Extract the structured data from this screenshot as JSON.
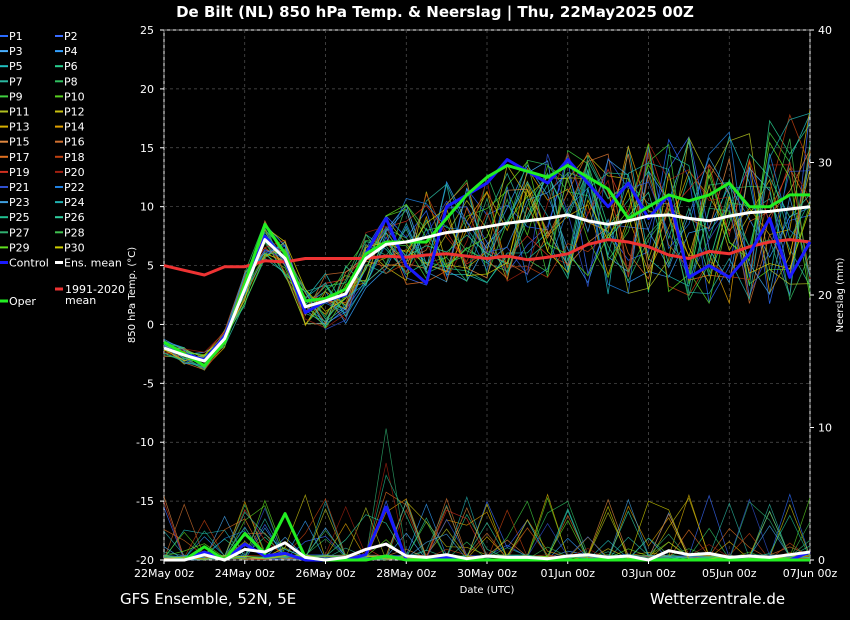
{
  "chart_data": {
    "type": "line",
    "title": "De Bilt  (NL)  850 hPa Temp. & Neerslag | Thu, 22May2025 00Z",
    "ylabel_left": "850 hPa Temp. (°C)",
    "ylabel_right": "Neerslag (mm)",
    "xlabel": "Date (UTC)",
    "footer_left": "GFS Ensemble, 52N, 5E",
    "footer_right": "Wetterzentrale.de",
    "x_ticks": [
      "22May 00z",
      "24May 00z",
      "26May 00z",
      "28May 00z",
      "30May 00z",
      "01Jun 00z",
      "03Jun 00z",
      "05Jun 00z",
      "07Jun 00z"
    ],
    "x_range_days": [
      0,
      16
    ],
    "y_left_ticks": [
      25,
      20,
      15,
      10,
      5,
      0,
      -5,
      -10,
      -15,
      -20
    ],
    "ylim_left": [
      -20,
      25
    ],
    "y_right_ticks": [
      40,
      30,
      20,
      10,
      0
    ],
    "ylim_right": [
      0,
      40
    ],
    "grid": true,
    "legend": [
      {
        "name": "P1",
        "color": "#2a6bff"
      },
      {
        "name": "P2",
        "color": "#3a6cff"
      },
      {
        "name": "P3",
        "color": "#4ab0ff"
      },
      {
        "name": "P4",
        "color": "#33a0ff"
      },
      {
        "name": "P5",
        "color": "#20c0c0"
      },
      {
        "name": "P6",
        "color": "#28d090"
      },
      {
        "name": "P7",
        "color": "#2ab8a0"
      },
      {
        "name": "P8",
        "color": "#30c060"
      },
      {
        "name": "P9",
        "color": "#40d040"
      },
      {
        "name": "P10",
        "color": "#58d020"
      },
      {
        "name": "P11",
        "color": "#b0c020"
      },
      {
        "name": "P12",
        "color": "#c8c010"
      },
      {
        "name": "P13",
        "color": "#d8b000"
      },
      {
        "name": "P14",
        "color": "#e0a000"
      },
      {
        "name": "P15",
        "color": "#e08840"
      },
      {
        "name": "P16",
        "color": "#d07030"
      },
      {
        "name": "P17",
        "color": "#e07020"
      },
      {
        "name": "P18",
        "color": "#c04010"
      },
      {
        "name": "P19",
        "color": "#d03020"
      },
      {
        "name": "P20",
        "color": "#a02010"
      },
      {
        "name": "P21",
        "color": "#3050d0"
      },
      {
        "name": "P22",
        "color": "#2080e0"
      },
      {
        "name": "P23",
        "color": "#40a0e0"
      },
      {
        "name": "P24",
        "color": "#20b0b0"
      },
      {
        "name": "P25",
        "color": "#20c090"
      },
      {
        "name": "P26",
        "color": "#30d0a0"
      },
      {
        "name": "P27",
        "color": "#30b070"
      },
      {
        "name": "P28",
        "color": "#40c050"
      },
      {
        "name": "P29",
        "color": "#60e020"
      },
      {
        "name": "P30",
        "color": "#d0d000"
      },
      {
        "name": "Control",
        "color": "#1a1aff"
      },
      {
        "name": "Ens. mean",
        "color": "#ffffff"
      },
      {
        "name": "Oper",
        "color": "#22ee22"
      },
      {
        "name": "1991-2020 mean",
        "color": "#ee3333"
      }
    ],
    "series": [
      {
        "name": "Control",
        "axis": "left",
        "color": "#1a1aff",
        "x": [
          0,
          0.5,
          1,
          1.5,
          2,
          2.5,
          3,
          3.5,
          4,
          4.5,
          5,
          5.5,
          6,
          6.5,
          7,
          7.5,
          8,
          8.5,
          9,
          9.5,
          10,
          10.5,
          11,
          11.5,
          12,
          12.5,
          13,
          13.5,
          14,
          14.5,
          15,
          15.5,
          16
        ],
        "y": [
          -2,
          -2.5,
          -3,
          -1,
          3,
          7.5,
          5.5,
          1,
          2,
          2.5,
          6,
          9,
          5,
          3.5,
          10,
          11,
          12,
          14,
          13,
          12,
          14,
          12,
          10,
          12,
          9,
          11,
          4,
          5,
          4,
          6,
          9,
          4,
          7
        ]
      },
      {
        "name": "Oper",
        "axis": "left",
        "color": "#22ee22",
        "x": [
          0,
          0.5,
          1,
          1.5,
          2,
          2.5,
          3,
          3.5,
          4,
          4.5,
          5,
          5.5,
          6,
          6.5,
          7,
          7.5,
          8,
          8.5,
          9,
          9.5,
          10,
          10.5,
          11,
          11.5,
          12,
          12.5,
          13,
          13.5,
          14,
          14.5,
          15,
          15.5,
          16
        ],
        "y": [
          -1.5,
          -2.5,
          -3.5,
          -1.5,
          3.5,
          8.5,
          6,
          2,
          2.2,
          3,
          6,
          7,
          7,
          7,
          9,
          11,
          12.5,
          13.5,
          13,
          12.5,
          13.5,
          12.5,
          11.5,
          9,
          10,
          11,
          10.5,
          11,
          12,
          10,
          10,
          11,
          11
        ]
      },
      {
        "name": "Ens. mean",
        "axis": "left",
        "color": "#ffffff",
        "x": [
          0,
          0.5,
          1,
          1.5,
          2,
          2.5,
          3,
          3.5,
          4,
          4.5,
          5,
          5.5,
          6,
          6.5,
          7,
          7.5,
          8,
          8.5,
          9,
          9.5,
          10,
          10.5,
          11,
          11.5,
          12,
          12.5,
          13,
          13.5,
          14,
          14.5,
          15,
          15.5,
          16
        ],
        "y": [
          -2,
          -2.6,
          -3.1,
          -1.2,
          3,
          7.2,
          5.6,
          1.5,
          2,
          2.6,
          5.6,
          6.8,
          7,
          7.4,
          7.8,
          8,
          8.3,
          8.6,
          8.8,
          9,
          9.3,
          8.8,
          8.5,
          8.8,
          9.2,
          9.3,
          9,
          8.8,
          9.2,
          9.5,
          9.6,
          9.8,
          10
        ]
      },
      {
        "name": "1991-2020 mean",
        "axis": "left",
        "color": "#ee3333",
        "x": [
          0,
          0.5,
          1,
          1.5,
          2,
          2.5,
          3,
          3.5,
          4,
          4.5,
          5,
          5.5,
          6,
          6.5,
          7,
          7.5,
          8,
          8.5,
          9,
          9.5,
          10,
          10.5,
          11,
          11.5,
          12,
          12.5,
          13,
          13.5,
          14,
          14.5,
          15,
          15.5,
          16
        ],
        "y": [
          5,
          4.6,
          4.2,
          4.9,
          4.9,
          5.4,
          5.3,
          5.6,
          5.6,
          5.6,
          5.6,
          5.8,
          5.7,
          5.9,
          6.0,
          5.8,
          5.6,
          5.8,
          5.5,
          5.7,
          6.0,
          6.8,
          7.2,
          7.0,
          6.6,
          5.9,
          5.6,
          6.2,
          6.0,
          6.6,
          7.0,
          7.2,
          7.0
        ]
      },
      {
        "name": "Ens. mean precip",
        "axis": "right",
        "color": "#ffffff",
        "x": [
          0,
          0.5,
          1,
          1.5,
          2,
          2.5,
          3,
          3.5,
          4,
          4.5,
          5,
          5.5,
          6,
          6.5,
          7,
          7.5,
          8,
          8.5,
          9,
          9.5,
          10,
          10.5,
          11,
          11.5,
          12,
          12.5,
          13,
          13.5,
          14,
          14.5,
          15,
          15.5,
          16
        ],
        "y": [
          0,
          0,
          0.4,
          0,
          0.8,
          0.6,
          1.3,
          0.2,
          0,
          0.2,
          0.8,
          1.2,
          0.3,
          0.2,
          0.4,
          0.1,
          0.3,
          0.2,
          0.2,
          0.1,
          0.3,
          0.4,
          0.2,
          0.3,
          0,
          0.7,
          0.4,
          0.5,
          0.2,
          0.3,
          0.2,
          0.4,
          0.6
        ]
      },
      {
        "name": "Control precip",
        "axis": "right",
        "color": "#1a1aff",
        "x": [
          0,
          0.5,
          1,
          1.5,
          2,
          2.5,
          3,
          3.5,
          4,
          4.5,
          5,
          5.5,
          6,
          6.5,
          7,
          7.5,
          8,
          8.5,
          9,
          9.5,
          10,
          10.5,
          11,
          11.5,
          12,
          12.5,
          13,
          13.5,
          14,
          14.5,
          15,
          15.5,
          16
        ],
        "y": [
          0,
          0,
          0.6,
          0,
          1.2,
          0.3,
          0.5,
          0,
          0,
          0,
          0.4,
          4,
          0,
          0,
          0.2,
          0,
          0,
          0,
          0,
          0,
          0,
          0,
          0,
          0,
          0,
          0,
          0,
          0,
          0,
          0,
          0,
          0,
          0.6
        ]
      },
      {
        "name": "Oper precip",
        "axis": "right",
        "color": "#22ee22",
        "x": [
          0,
          0.5,
          1,
          1.5,
          2,
          2.5,
          3,
          3.5,
          4,
          4.5,
          5,
          5.5,
          6,
          6.5,
          7,
          7.5,
          8,
          8.5,
          9,
          9.5,
          10,
          10.5,
          11,
          11.5,
          12,
          12.5,
          13,
          13.5,
          14,
          14.5,
          15,
          15.5,
          16
        ],
        "y": [
          0,
          0,
          1,
          0,
          2,
          0.5,
          3.5,
          0.2,
          0,
          0,
          0,
          0.3,
          0,
          0,
          0,
          0,
          0,
          0,
          0,
          0,
          0,
          0,
          0,
          0,
          0,
          0,
          0,
          0,
          0,
          0,
          0,
          0,
          0
        ]
      }
    ]
  }
}
